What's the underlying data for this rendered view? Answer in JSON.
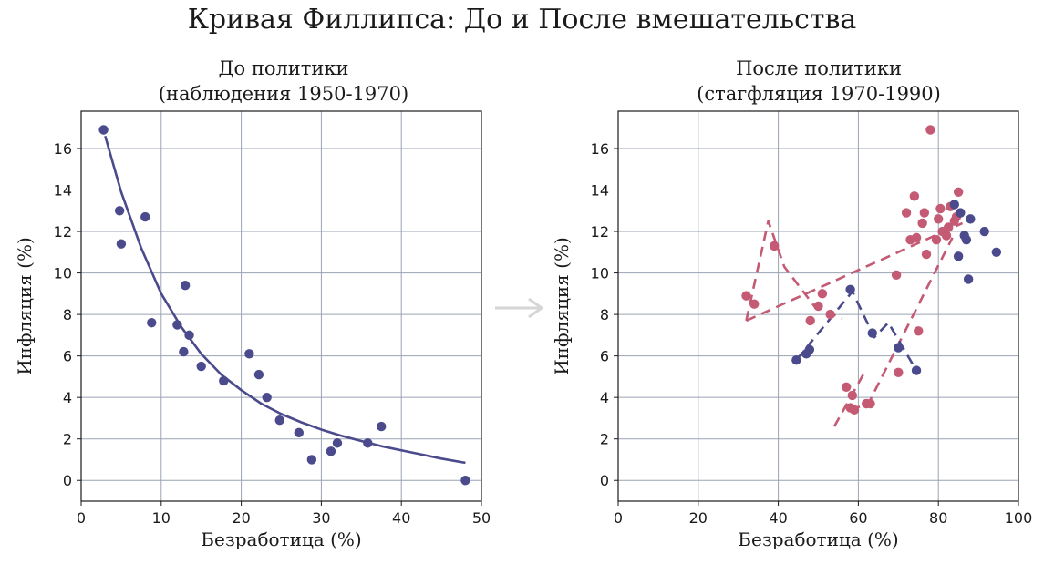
{
  "title": "Кривая Филлипса: До и После вмешательства",
  "colors": {
    "blue": "#4a4a8c",
    "red": "#c45a73",
    "grid": "#9aa3b5",
    "arrow": "#d6d6d6"
  },
  "arrow_icon": "right-arrow-icon",
  "chart_data": [
    {
      "type": "scatter",
      "title_lines": [
        "До политики",
        "(наблюдения 1950-1970)"
      ],
      "xlabel": "Безработица (%)",
      "ylabel": "Инфляция (%)",
      "xlim": [
        0,
        50
      ],
      "ylim": [
        -1,
        17.8
      ],
      "xticks": [
        0,
        10,
        20,
        30,
        40,
        50
      ],
      "yticks": [
        0,
        2,
        4,
        6,
        8,
        10,
        12,
        14,
        16
      ],
      "grid": true,
      "series": [
        {
          "style": "points",
          "color": "#4a4a8c",
          "x": [
            2.8,
            4.8,
            5.0,
            8.0,
            8.8,
            12.0,
            12.8,
            13.0,
            13.5,
            15.0,
            17.8,
            21.0,
            22.2,
            23.2,
            24.8,
            27.2,
            28.8,
            31.2,
            32.0,
            35.8,
            37.5,
            48.0
          ],
          "y": [
            16.9,
            13.0,
            11.4,
            12.7,
            7.6,
            7.5,
            6.2,
            9.4,
            7.0,
            5.5,
            4.8,
            6.1,
            5.1,
            4.0,
            2.9,
            2.3,
            1.0,
            1.4,
            1.8,
            1.8,
            2.6,
            0.0
          ]
        },
        {
          "style": "curve",
          "color": "#4a4a8c",
          "x": [
            3,
            5,
            7.5,
            10,
            12.5,
            15,
            17.5,
            20,
            22.5,
            25,
            27.5,
            30,
            32.5,
            35,
            37.5,
            40,
            42.5,
            45,
            48
          ],
          "y": [
            16.6,
            13.9,
            11.2,
            9.0,
            7.4,
            6.1,
            5.1,
            4.35,
            3.7,
            3.2,
            2.8,
            2.45,
            2.15,
            1.9,
            1.65,
            1.45,
            1.25,
            1.05,
            0.85
          ]
        }
      ]
    },
    {
      "type": "scatter",
      "title_lines": [
        "После политики",
        "(стагфляция 1970-1990)"
      ],
      "xlabel": "Безработица (%)",
      "ylabel": "Инфляция (%)",
      "xlim": [
        0,
        100
      ],
      "ylim": [
        -1,
        17.8
      ],
      "xticks": [
        0,
        20,
        40,
        60,
        80,
        100
      ],
      "yticks": [
        0,
        2,
        4,
        6,
        8,
        10,
        12,
        14,
        16
      ],
      "grid": true,
      "series": [
        {
          "style": "points",
          "color": "#c45a73",
          "x": [
            32,
            34,
            39,
            48,
            50,
            51,
            53,
            57,
            58,
            58.5,
            59,
            62,
            63,
            69.5,
            70,
            72,
            73,
            74,
            74.5,
            75,
            76,
            76.5,
            77,
            78,
            79.5,
            80,
            80.5,
            81,
            82,
            82.5,
            83,
            84,
            84.5,
            85
          ],
          "y": [
            8.9,
            8.5,
            11.3,
            7.7,
            8.4,
            9.0,
            8.0,
            4.5,
            3.5,
            4.1,
            3.4,
            3.7,
            3.7,
            9.9,
            5.2,
            12.9,
            11.6,
            13.7,
            11.7,
            7.2,
            12.4,
            12.9,
            10.9,
            16.9,
            11.6,
            12.6,
            13.1,
            12.0,
            11.8,
            12.2,
            13.2,
            12.5,
            12.7,
            13.9
          ]
        },
        {
          "style": "points",
          "color": "#4a4a8c",
          "x": [
            44.5,
            47,
            47.8,
            58,
            63.5,
            70,
            74.5,
            84,
            85,
            85.5,
            86.5,
            87,
            87.5,
            88,
            91.5,
            94.5
          ],
          "y": [
            5.8,
            6.1,
            6.3,
            9.2,
            7.1,
            6.4,
            5.3,
            13.3,
            10.8,
            12.9,
            11.8,
            11.6,
            9.7,
            12.6,
            12.0,
            11.0
          ]
        },
        {
          "style": "dashed",
          "color": "#c45a73",
          "x": [
            32,
            37.5,
            41.5,
            49,
            56
          ],
          "y": [
            7.7,
            12.5,
            10.3,
            8.4,
            7.8
          ]
        },
        {
          "style": "dashed",
          "color": "#c45a73",
          "x": [
            32,
            86
          ],
          "y": [
            7.7,
            12.4
          ]
        },
        {
          "style": "dashed",
          "color": "#c45a73",
          "x": [
            58,
            62.5,
            83.5
          ],
          "y": [
            3.4,
            3.7,
            11.7
          ]
        },
        {
          "style": "dashed",
          "color": "#c45a73",
          "x": [
            54,
            61.5
          ],
          "y": [
            2.6,
            5.2
          ]
        },
        {
          "style": "dashed",
          "color": "#4a4a8c",
          "x": [
            44.5,
            58.5,
            64,
            67.5,
            74.5
          ],
          "y": [
            5.8,
            9.1,
            6.9,
            7.6,
            5.3
          ]
        }
      ]
    }
  ]
}
